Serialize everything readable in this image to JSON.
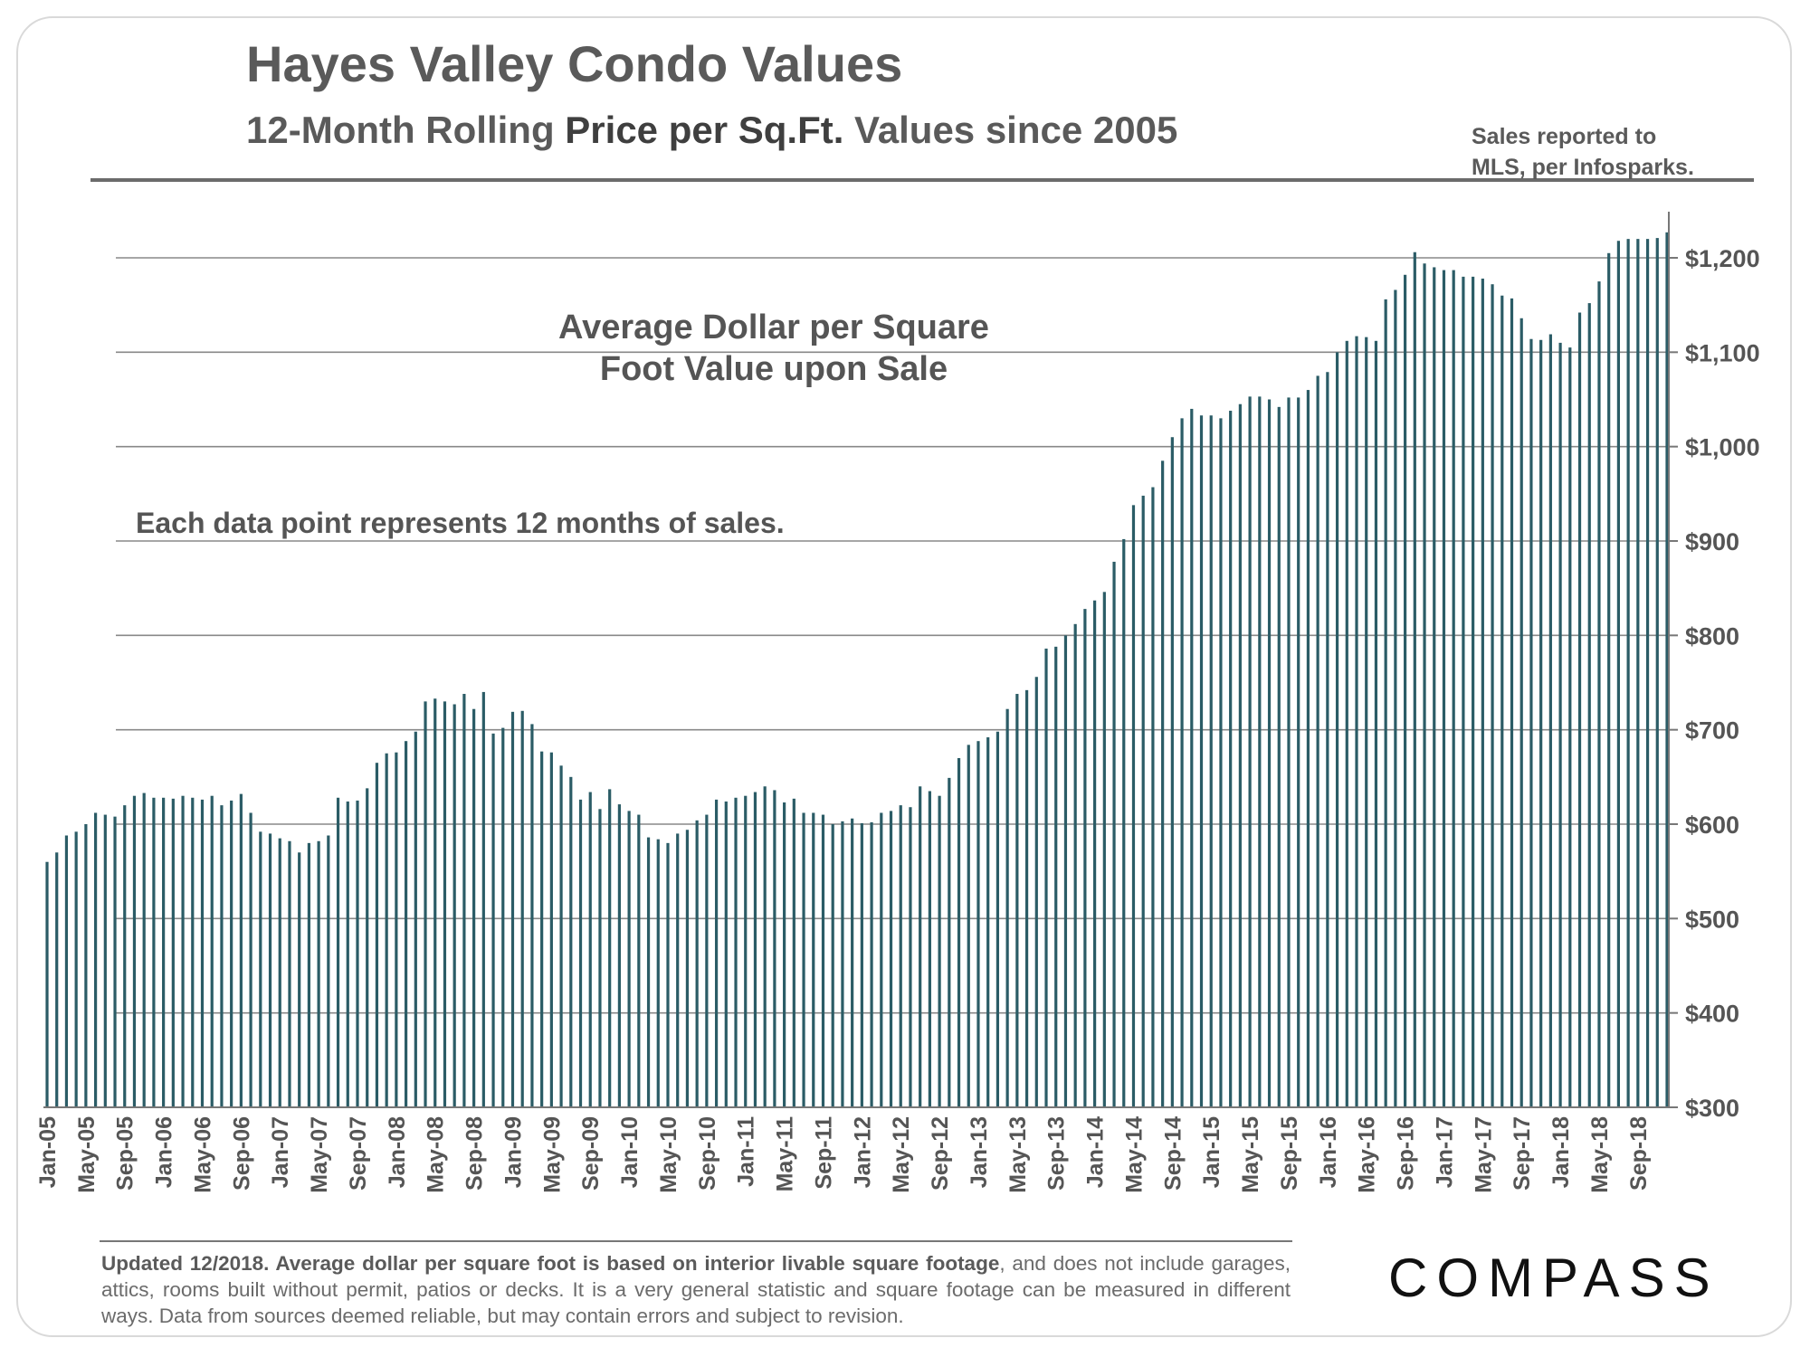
{
  "header": {
    "title": "Hayes Valley Condo Values",
    "subtitle_part1": "12-Month Rolling ",
    "subtitle_part2": "Price per Sq.Ft.",
    "subtitle_part3": " Values since 2005",
    "source_line1": "Sales reported to",
    "source_line2": "MLS, per Infosparks."
  },
  "footnote": {
    "bold": "Updated 12/2018. Average dollar per square foot is based on interior livable square footage",
    "rest": ", and does not include garages, attics, rooms built without permit, patios or decks. It is a very general statistic and square footage can be measured in different ways. Data from sources deemed reliable, but may contain errors and subject to revision."
  },
  "logo": {
    "text": "COMPASS"
  },
  "colors": {
    "bar": "#2b5c66",
    "grid": "#888888",
    "text": "#555555"
  },
  "chart_data": {
    "type": "bar",
    "title": "Hayes Valley Condo Values",
    "ylabel": "Average Dollar per Square Foot",
    "ylim": [
      300,
      1250
    ],
    "y_ticks": [
      300,
      400,
      500,
      600,
      700,
      800,
      900,
      1000,
      1100,
      1200
    ],
    "y_tick_labels": [
      "$300",
      "$400",
      "$500",
      "$600",
      "$700",
      "$800",
      "$900",
      "$1,000",
      "$1,100",
      "$1,200"
    ],
    "grid": true,
    "y_axis_position": "right",
    "annotation_main_line1": "Average Dollar per Square",
    "annotation_main_line2": "Foot Value upon Sale",
    "annotation_note": "Each data point represents 12 months of sales.",
    "x_tick_labels": [
      "Jan-05",
      "May-05",
      "Sep-05",
      "Jan-06",
      "May-06",
      "Sep-06",
      "Jan-07",
      "May-07",
      "Sep-07",
      "Jan-08",
      "May-08",
      "Sep-08",
      "Jan-09",
      "May-09",
      "Sep-09",
      "Jan-10",
      "May-10",
      "Sep-10",
      "Jan-11",
      "May-11",
      "Sep-11",
      "Jan-12",
      "May-12",
      "Sep-12",
      "Jan-13",
      "May-13",
      "Sep-13",
      "Jan-14",
      "May-14",
      "Sep-14",
      "Jan-15",
      "May-15",
      "Sep-15",
      "Jan-16",
      "May-16",
      "Sep-16",
      "Jan-17",
      "May-17",
      "Sep-17",
      "Jan-18",
      "May-18",
      "Sep-18"
    ],
    "first_month": "Jan-05",
    "last_month": "Dec-18",
    "values": [
      560,
      570,
      588,
      592,
      600,
      612,
      610,
      608,
      620,
      630,
      633,
      628,
      628,
      627,
      630,
      628,
      626,
      630,
      620,
      625,
      632,
      612,
      592,
      590,
      585,
      582,
      570,
      580,
      582,
      588,
      628,
      624,
      625,
      638,
      665,
      675,
      676,
      688,
      698,
      730,
      733,
      730,
      727,
      738,
      722,
      740,
      696,
      702,
      719,
      720,
      706,
      677,
      676,
      662,
      650,
      626,
      634,
      616,
      637,
      621,
      614,
      610,
      586,
      584,
      580,
      590,
      594,
      604,
      610,
      626,
      624,
      628,
      630,
      634,
      640,
      636,
      623,
      627,
      612,
      612,
      610,
      600,
      603,
      606,
      601,
      602,
      612,
      614,
      620,
      618,
      640,
      635,
      630,
      649,
      670,
      684,
      688,
      692,
      698,
      722,
      738,
      742,
      756,
      786,
      788,
      800,
      812,
      828,
      837,
      846,
      878,
      902,
      938,
      948,
      957,
      985,
      1010,
      1030,
      1040,
      1033,
      1033,
      1030,
      1038,
      1045,
      1053,
      1053,
      1050,
      1042,
      1052,
      1052,
      1060,
      1075,
      1079,
      1100,
      1112,
      1117,
      1116,
      1112,
      1156,
      1166,
      1182,
      1206,
      1194,
      1190,
      1187,
      1187,
      1180,
      1180,
      1178,
      1172,
      1160,
      1157,
      1136,
      1114,
      1113,
      1119,
      1110,
      1105,
      1142,
      1152,
      1175,
      1205,
      1218,
      1220,
      1220,
      1220,
      1221,
      1227
    ]
  }
}
